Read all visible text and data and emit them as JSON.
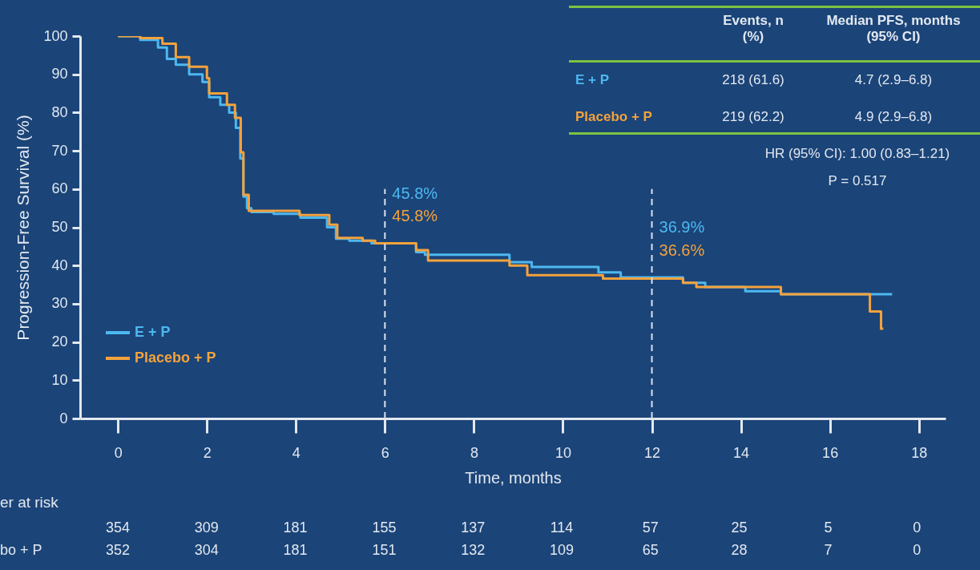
{
  "chart_data": [
    {
      "type": "step",
      "xlabel": "Time, months",
      "ylabel": "Progression-Free Survival (%)",
      "xlim": [
        -0.85,
        18.6
      ],
      "xticks": [
        0,
        2,
        4,
        6,
        8,
        10,
        12,
        14,
        16,
        18
      ],
      "ylim": [
        0,
        100
      ],
      "yticks": [
        0,
        10,
        20,
        30,
        40,
        50,
        60,
        70,
        80,
        90,
        100
      ],
      "legend": "left",
      "series": [
        {
          "name": "E + P",
          "color": "#4db8f0",
          "x": [
            0,
            0.5,
            0.9,
            1.1,
            1.3,
            1.6,
            1.9,
            2.05,
            2.3,
            2.5,
            2.65,
            2.75,
            2.82,
            2.9,
            3.0,
            3.5,
            4.1,
            4.7,
            4.9,
            5.2,
            5.7,
            6,
            6.7,
            6.9,
            8.8,
            9.3,
            10.8,
            11.3,
            12,
            12.7,
            13.2,
            14.1,
            14.9,
            17.4
          ],
          "values": [
            100,
            99,
            97,
            94,
            92.5,
            90,
            88,
            84,
            82,
            80,
            76,
            68,
            58,
            55,
            54,
            53.5,
            52.5,
            50,
            47,
            46.5,
            45.8,
            45.8,
            43.5,
            42.8,
            40.9,
            39.6,
            38.2,
            36.9,
            36.9,
            35.5,
            34.4,
            33.3,
            32.5,
            32.5
          ],
          "value_labels": [
            null,
            null,
            null,
            null,
            null,
            null,
            null,
            null,
            null,
            null,
            null,
            null,
            null,
            null,
            null,
            null,
            null,
            null,
            null,
            null,
            null,
            "45.8%",
            null,
            null,
            null,
            null,
            null,
            null,
            "36.9%",
            null,
            null,
            null,
            null,
            null
          ]
        },
        {
          "name": "Placebo + P",
          "color": "#f4a23c",
          "x": [
            0,
            0.5,
            1.0,
            1.3,
            1.6,
            2.0,
            2.05,
            2.45,
            2.63,
            2.76,
            2.82,
            2.94,
            4.08,
            4.75,
            4.93,
            5.5,
            5.78,
            6,
            6.7,
            6.97,
            8.8,
            9.2,
            10.9,
            12,
            12.7,
            13.0,
            14.9,
            16.9,
            17.15,
            17.2
          ],
          "values": [
            100,
            99.5,
            98,
            94.5,
            92,
            89,
            85,
            82,
            78.6,
            69.6,
            58.5,
            54.3,
            53.2,
            50.7,
            47.2,
            46.5,
            45.8,
            45.8,
            44,
            41.3,
            40,
            37.5,
            36.6,
            36.6,
            35.5,
            34.4,
            32.5,
            28,
            23.5,
            23.5
          ],
          "value_labels": [
            null,
            null,
            null,
            null,
            null,
            null,
            null,
            null,
            null,
            null,
            null,
            null,
            null,
            null,
            null,
            null,
            null,
            "45.8%",
            null,
            null,
            null,
            null,
            null,
            "36.6%",
            null,
            null,
            null,
            null,
            null,
            null
          ]
        }
      ],
      "ref_lines": [
        {
          "axis": "x",
          "value": 6,
          "label": null,
          "color": "#d9e2ee",
          "line_style": "dashed"
        },
        {
          "axis": "x",
          "value": 12,
          "label": null,
          "color": "#d9e2ee",
          "line_style": "dashed"
        }
      ],
      "annotations": [
        "Events, n (%)",
        "Median PFS, months (95% CI)",
        "E + P",
        "218 (61.6)",
        "4.7 (2.9–6.8)",
        "Placebo + P",
        "219 (62.2)",
        "4.9 (2.9–6.8)",
        "HR (95% CI): 1.00 (0.83–1.21)",
        "P = 0.517"
      ]
    },
    {
      "type": "heatmap",
      "title": "er at risk",
      "data_labels": true,
      "categories": [
        null,
        null,
        null,
        null,
        null,
        null,
        null,
        null,
        null,
        null
      ],
      "y_categories": [
        null,
        "bo + P"
      ],
      "cells": [
        [
          354,
          309,
          181,
          155,
          137,
          114,
          57,
          25,
          5,
          0
        ],
        [
          352,
          304,
          181,
          151,
          132,
          109,
          65,
          28,
          7,
          0
        ]
      ]
    }
  ]
}
